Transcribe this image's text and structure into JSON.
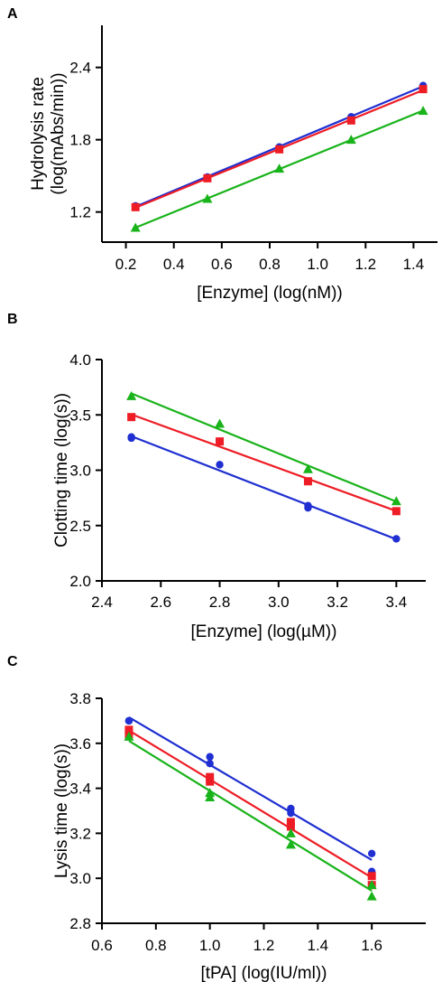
{
  "chart_data": [
    {
      "panel": "A",
      "type": "scatter",
      "xlabel": "[Enzyme] (log(nM))",
      "ylabel": [
        "Hydrolysis rate",
        "(log(mAbs/min))"
      ],
      "xlim": [
        0.1,
        1.5
      ],
      "ylim": [
        0.95,
        2.75
      ],
      "xticks": [
        0.2,
        0.4,
        0.6,
        0.8,
        1.0,
        1.2,
        1.4
      ],
      "xtick_labels": [
        "0.2",
        "0.4",
        "0.6",
        "0.8",
        "1.0",
        "1.2",
        "1.4"
      ],
      "yticks": [
        1.2,
        1.8,
        2.4
      ],
      "ytick_labels": [
        "1.2",
        "1.8",
        "2.4"
      ],
      "grid": false,
      "series": [
        {
          "color": "#1f2fd1",
          "marker": "circle",
          "x": [
            0.24,
            0.54,
            0.84,
            1.14,
            1.44
          ],
          "y": [
            1.25,
            1.49,
            1.74,
            1.99,
            2.25
          ]
        },
        {
          "color": "#ee1c25",
          "marker": "square",
          "x": [
            0.24,
            0.54,
            0.84,
            1.14,
            1.44
          ],
          "y": [
            1.24,
            1.48,
            1.72,
            1.96,
            2.22
          ]
        },
        {
          "color": "#19b31a",
          "marker": "triangle",
          "x": [
            0.24,
            0.54,
            0.84,
            1.14,
            1.44
          ],
          "y": [
            1.07,
            1.31,
            1.56,
            1.8,
            2.04
          ]
        }
      ]
    },
    {
      "panel": "B",
      "type": "scatter",
      "xlabel": "[Enzyme] (log(µM))",
      "ylabel": [
        "Clotting time  (log(s))"
      ],
      "xlim": [
        2.4,
        3.5
      ],
      "ylim": [
        2.0,
        4.0
      ],
      "xticks": [
        2.4,
        2.6,
        2.8,
        3.0,
        3.2,
        3.4
      ],
      "xtick_labels": [
        "2.4",
        "2.6",
        "2.8",
        "3.0",
        "3.2",
        "3.4"
      ],
      "yticks": [
        2.0,
        2.5,
        3.0,
        3.5,
        4.0
      ],
      "ytick_labels": [
        "2.0",
        "2.5",
        "3.0",
        "3.5",
        "4.0"
      ],
      "grid": false,
      "series": [
        {
          "color": "#1f2fd1",
          "marker": "circle",
          "x": [
            2.5,
            2.5,
            2.8,
            3.1,
            3.1,
            3.4
          ],
          "y": [
            3.29,
            3.3,
            3.05,
            2.66,
            2.68,
            2.38
          ]
        },
        {
          "color": "#ee1c25",
          "marker": "square",
          "x": [
            2.5,
            2.8,
            3.1,
            3.4
          ],
          "y": [
            3.48,
            3.26,
            2.9,
            2.63
          ]
        },
        {
          "color": "#19b31a",
          "marker": "triangle",
          "x": [
            2.5,
            2.8,
            3.1,
            3.4
          ],
          "y": [
            3.67,
            3.42,
            3.01,
            2.72
          ]
        }
      ]
    },
    {
      "panel": "C",
      "type": "scatter",
      "xlabel": "[tPA] (log(IU/ml))",
      "ylabel": [
        "Lysis time (log(s))"
      ],
      "xlim": [
        0.6,
        1.8
      ],
      "ylim": [
        2.8,
        3.8
      ],
      "xticks": [
        0.6,
        0.8,
        1.0,
        1.2,
        1.4,
        1.6
      ],
      "xtick_labels": [
        "0.6",
        "0.8",
        "1.0",
        "1.2",
        "1.4",
        "1.6"
      ],
      "yticks": [
        2.8,
        3.0,
        3.2,
        3.4,
        3.6,
        3.8
      ],
      "ytick_labels": [
        "2.8",
        "3.0",
        "3.2",
        "3.4",
        "3.6",
        "3.8"
      ],
      "grid": false,
      "series": [
        {
          "color": "#1f2fd1",
          "marker": "circle",
          "x": [
            0.7,
            0.7,
            1.0,
            1.0,
            1.3,
            1.3,
            1.6,
            1.6
          ],
          "y": [
            3.7,
            3.7,
            3.54,
            3.51,
            3.31,
            3.29,
            3.11,
            3.03
          ]
        },
        {
          "color": "#ee1c25",
          "marker": "square",
          "x": [
            0.7,
            0.7,
            1.0,
            1.0,
            1.3,
            1.3,
            1.6,
            1.6
          ],
          "y": [
            3.66,
            3.64,
            3.45,
            3.43,
            3.25,
            3.23,
            3.01,
            2.97
          ]
        },
        {
          "color": "#19b31a",
          "marker": "triangle",
          "x": [
            0.7,
            1.0,
            1.0,
            1.3,
            1.3,
            1.6,
            1.6
          ],
          "y": [
            3.63,
            3.38,
            3.36,
            3.2,
            3.15,
            2.97,
            2.92
          ]
        }
      ]
    }
  ]
}
